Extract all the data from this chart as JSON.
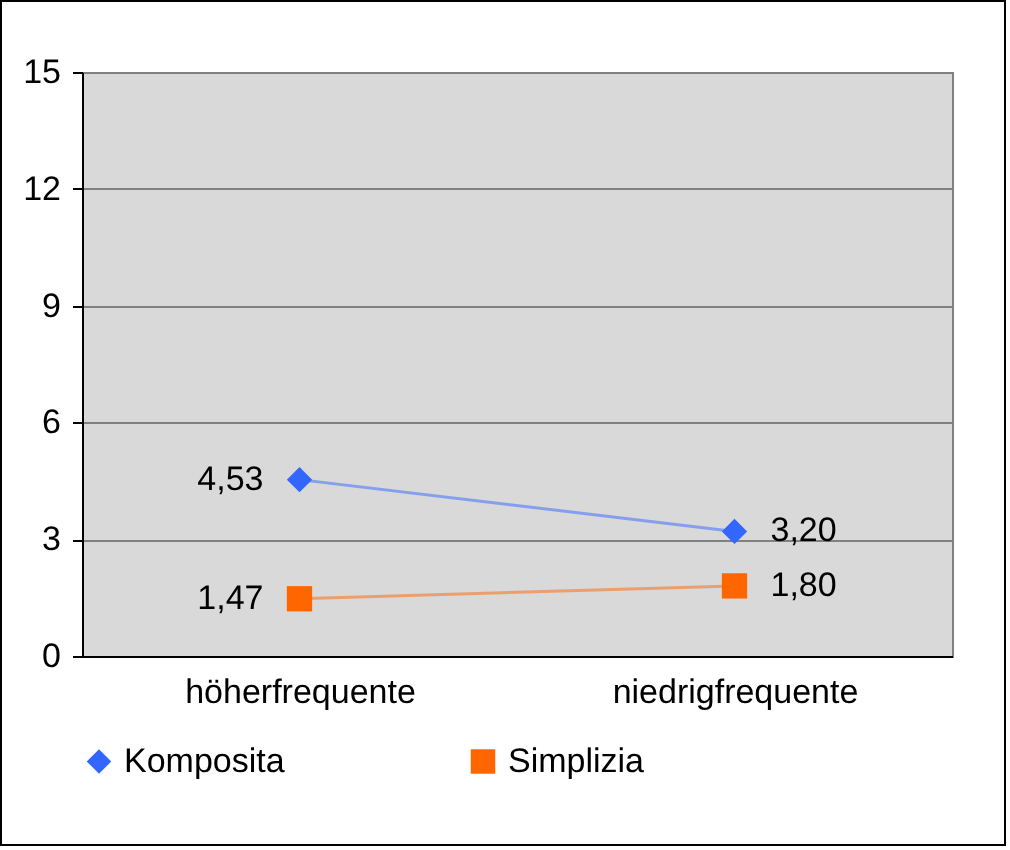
{
  "chart_data": {
    "type": "line",
    "categories": [
      "höherfrequente",
      "niedrigfrequente"
    ],
    "series": [
      {
        "name": "Komposita",
        "color": "#3366ff",
        "marker": "diamond",
        "values": [
          4.53,
          3.2
        ],
        "value_labels": [
          "4,53",
          "3,20"
        ]
      },
      {
        "name": "Simplizia",
        "color": "#ff6600",
        "marker": "square",
        "values": [
          1.47,
          1.8
        ],
        "value_labels": [
          "1,47",
          "1,80"
        ]
      }
    ],
    "ylim": [
      0,
      15
    ],
    "yticks": [
      0,
      3,
      6,
      9,
      12,
      15
    ],
    "grid": "y",
    "legend": "bottom",
    "line_style": "solid"
  }
}
